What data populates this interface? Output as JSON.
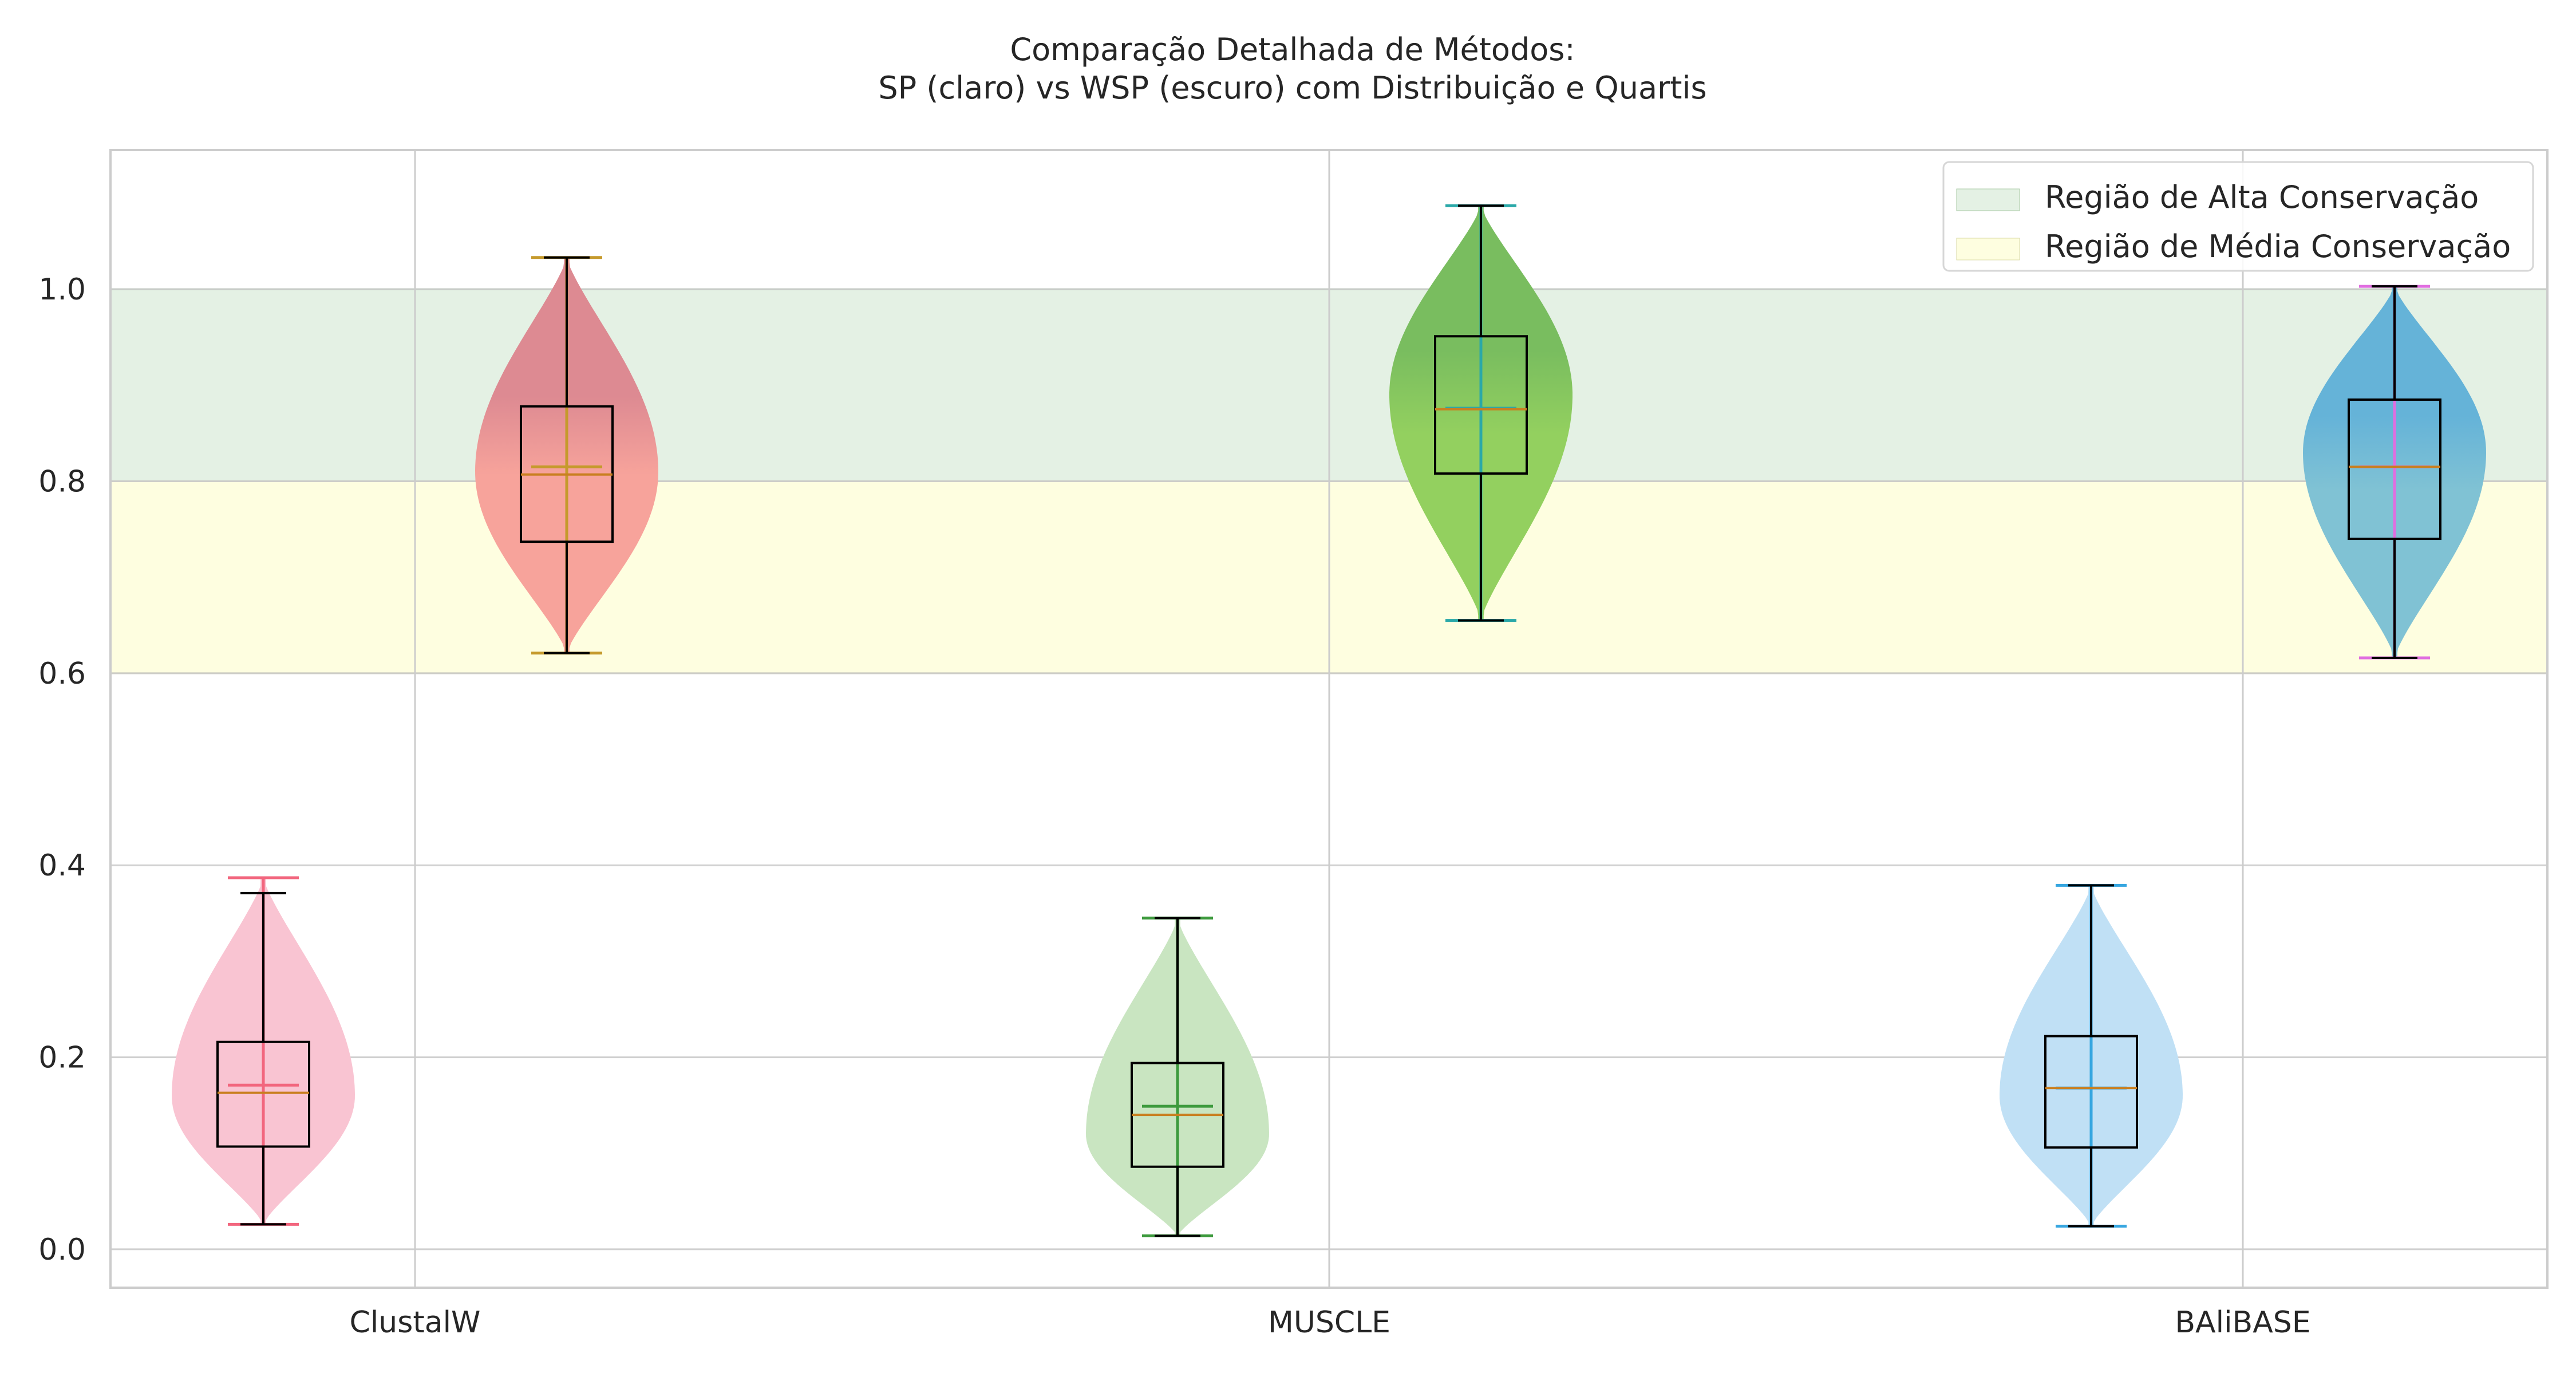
{
  "chart_data": {
    "type": "violin",
    "title_line1": "Comparação Detalhada de Métodos:",
    "title_line2": "SP (claro) vs WSP (escuro) com Distribuição e Quartis",
    "xlabel": "",
    "ylabel": "",
    "categories": [
      "ClustalW",
      "MUSCLE",
      "BAliBASE"
    ],
    "ylim": [
      -0.04,
      1.145
    ],
    "yticks": [
      0.0,
      0.2,
      0.4,
      0.6,
      0.8,
      1.0
    ],
    "ytick_labels": [
      "0.0",
      "0.2",
      "0.4",
      "0.6",
      "0.8",
      "1.0"
    ],
    "grid": true,
    "legend_position": "top-right",
    "bands": [
      {
        "label": "Região de Alta Conservação",
        "from": 0.8,
        "to": 1.0,
        "color": "#e4f1e4",
        "edge": "#a9c9a4"
      },
      {
        "label": "Região de Média Conservação",
        "from": 0.6,
        "to": 0.8,
        "color": "#fefee0",
        "edge": "#d9d9a6"
      }
    ],
    "groups": [
      {
        "category": "ClustalW",
        "sp": {
          "min": 0.026,
          "q1": 0.107,
          "median": 0.163,
          "mean": 0.171,
          "q3": 0.216,
          "whisker_high": 0.371,
          "max": 0.387,
          "peak": 0.16,
          "color": "#f9c4d2",
          "line": "#f2667e"
        },
        "wsp": {
          "min": 0.621,
          "q1": 0.737,
          "median": 0.807,
          "mean": 0.815,
          "q3": 0.878,
          "whisker_high": 1.033,
          "max": 1.033,
          "peak": 0.81,
          "color_top": "#dd8a92",
          "color_bottom": "#f7a39b",
          "line": "#c59a2c"
        }
      },
      {
        "category": "MUSCLE",
        "sp": {
          "min": 0.014,
          "q1": 0.086,
          "median": 0.14,
          "mean": 0.149,
          "q3": 0.194,
          "whisker_high": 0.345,
          "max": 0.345,
          "peak": 0.12,
          "color": "#c9e5c1",
          "line": "#3d9a3d"
        },
        "wsp": {
          "min": 0.655,
          "q1": 0.808,
          "median": 0.875,
          "mean": 0.876,
          "q3": 0.951,
          "whisker_high": 1.087,
          "max": 1.087,
          "peak": 0.89,
          "color_top": "#79bd5f",
          "color_bottom": "#93d05f",
          "line": "#2aa8a8"
        }
      },
      {
        "category": "BAliBASE",
        "sp": {
          "min": 0.024,
          "q1": 0.106,
          "median": 0.168,
          "mean": 0.168,
          "q3": 0.222,
          "whisker_high": 0.379,
          "max": 0.379,
          "peak": 0.16,
          "color": "#c0e0f5",
          "line": "#36a6e0"
        },
        "wsp": {
          "min": 0.616,
          "q1": 0.74,
          "median": 0.815,
          "mean": 0.815,
          "q3": 0.885,
          "whisker_high": 1.003,
          "max": 1.003,
          "peak": 0.83,
          "color_top": "#65b3d8",
          "color_bottom": "#80c2d4",
          "line": "#e06ee0"
        }
      }
    ]
  }
}
